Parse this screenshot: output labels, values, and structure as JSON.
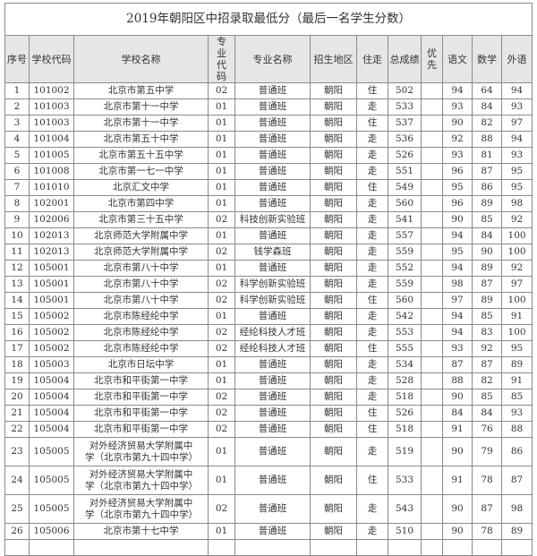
{
  "title": "2019年朝阳区中招录取最低分（最后一名学生分数）",
  "headers": [
    "序号",
    "学校代码",
    "学校名称",
    "专业代码",
    "专业名称",
    "招生地区",
    "住走",
    "总成绩",
    "优先",
    "语文",
    "数学",
    "外语"
  ],
  "rows": [
    [
      "1",
      "101002",
      "北京市第五中学",
      "02",
      "普通班",
      "朝阳",
      "住",
      "502",
      "",
      "94",
      "64",
      "94"
    ],
    [
      "2",
      "101003",
      "北京市第十一中学",
      "01",
      "普通班",
      "朝阳",
      "走",
      "533",
      "",
      "93",
      "84",
      "93"
    ],
    [
      "3",
      "101003",
      "北京市第十一中学",
      "01",
      "普通班",
      "朝阳",
      "住",
      "537",
      "",
      "90",
      "82",
      "97"
    ],
    [
      "4",
      "101004",
      "北京市第五十中学",
      "01",
      "普通班",
      "朝阳",
      "走",
      "536",
      "",
      "92",
      "88",
      "94"
    ],
    [
      "5",
      "101005",
      "北京市第五十五中学",
      "01",
      "普通班",
      "朝阳",
      "走",
      "526",
      "",
      "93",
      "81",
      "93"
    ],
    [
      "6",
      "101008",
      "北京市第一七一中学",
      "01",
      "普通班",
      "朝阳",
      "走",
      "551",
      "",
      "96",
      "87",
      "95"
    ],
    [
      "7",
      "101010",
      "北京汇文中学",
      "01",
      "普通班",
      "朝阳",
      "住",
      "549",
      "",
      "95",
      "86",
      "95"
    ],
    [
      "8",
      "102001",
      "北京市第四中学",
      "01",
      "普通班",
      "朝阳",
      "走",
      "560",
      "",
      "96",
      "89",
      "98"
    ],
    [
      "9",
      "102006",
      "北京市第三十五中学",
      "02",
      "科技创新实验班",
      "朝阳",
      "走",
      "541",
      "",
      "90",
      "85",
      "92"
    ],
    [
      "10",
      "102013",
      "北京师范大学附属中学",
      "01",
      "普通班",
      "朝阳",
      "走",
      "557",
      "",
      "94",
      "84",
      "100"
    ],
    [
      "11",
      "102013",
      "北京师范大学附属中学",
      "02",
      "钱学森班",
      "朝阳",
      "走",
      "559",
      "",
      "95",
      "90",
      "100"
    ],
    [
      "12",
      "105001",
      "北京市第八十中学",
      "01",
      "普通班",
      "朝阳",
      "走",
      "552",
      "",
      "94",
      "89",
      "92"
    ],
    [
      "13",
      "105001",
      "北京市第八十中学",
      "02",
      "科学创新实验班",
      "朝阳",
      "走",
      "559",
      "",
      "98",
      "87",
      "97"
    ],
    [
      "14",
      "105001",
      "北京市第八十中学",
      "02",
      "科学创新实验班",
      "朝阳",
      "住",
      "560",
      "",
      "97",
      "89",
      "100"
    ],
    [
      "15",
      "105002",
      "北京市陈经纶中学",
      "01",
      "普通班",
      "朝阳",
      "走",
      "542",
      "",
      "94",
      "85",
      "91"
    ],
    [
      "16",
      "105002",
      "北京市陈经纶中学",
      "02",
      "经纶科技人才班",
      "朝阳",
      "走",
      "553",
      "",
      "94",
      "83",
      "100"
    ],
    [
      "17",
      "105002",
      "北京市陈经纶中学",
      "02",
      "经纶科技人才班",
      "朝阳",
      "住",
      "555",
      "",
      "93",
      "92",
      "95"
    ],
    [
      "18",
      "105003",
      "北京市日坛中学",
      "01",
      "普通班",
      "朝阳",
      "走",
      "534",
      "",
      "87",
      "87",
      "89"
    ],
    [
      "19",
      "105004",
      "北京市和平街第一中学",
      "01",
      "普通班",
      "朝阳",
      "走",
      "528",
      "",
      "88",
      "82",
      "91"
    ],
    [
      "20",
      "105004",
      "北京市和平街第一中学",
      "02",
      "普通班",
      "朝阳",
      "走",
      "518",
      "",
      "90",
      "85",
      "85"
    ],
    [
      "21",
      "105004",
      "北京市和平街第一中学",
      "02",
      "普通班",
      "朝阳",
      "住",
      "526",
      "",
      "84",
      "84",
      "93"
    ],
    [
      "22",
      "105004",
      "北京市和平街第一中学",
      "02",
      "普通班",
      "朝阳",
      "住",
      "518",
      "",
      "91",
      "76",
      "88"
    ],
    [
      "23",
      "105005",
      "对外经济贸易大学附属中学（北京市第九十四中学）",
      "01",
      "普通班",
      "朝阳",
      "走",
      "519",
      "",
      "90",
      "79",
      "86"
    ],
    [
      "24",
      "105005",
      "对外经济贸易大学附属中学（北京市第九十四中学）",
      "01",
      "普通班",
      "朝阳",
      "住",
      "533",
      "",
      "91",
      "78",
      "87"
    ],
    [
      "25",
      "105005",
      "对外经济贸易大学附属中学（北京市第九十四中学）",
      "02",
      "普通班",
      "朝阳",
      "走",
      "543",
      "",
      "90",
      "87",
      "98"
    ],
    [
      "26",
      "105006",
      "北京市第十七中学",
      "01",
      "普通班",
      "朝阳",
      "走",
      "510",
      "",
      "90",
      "78",
      "89"
    ]
  ]
}
